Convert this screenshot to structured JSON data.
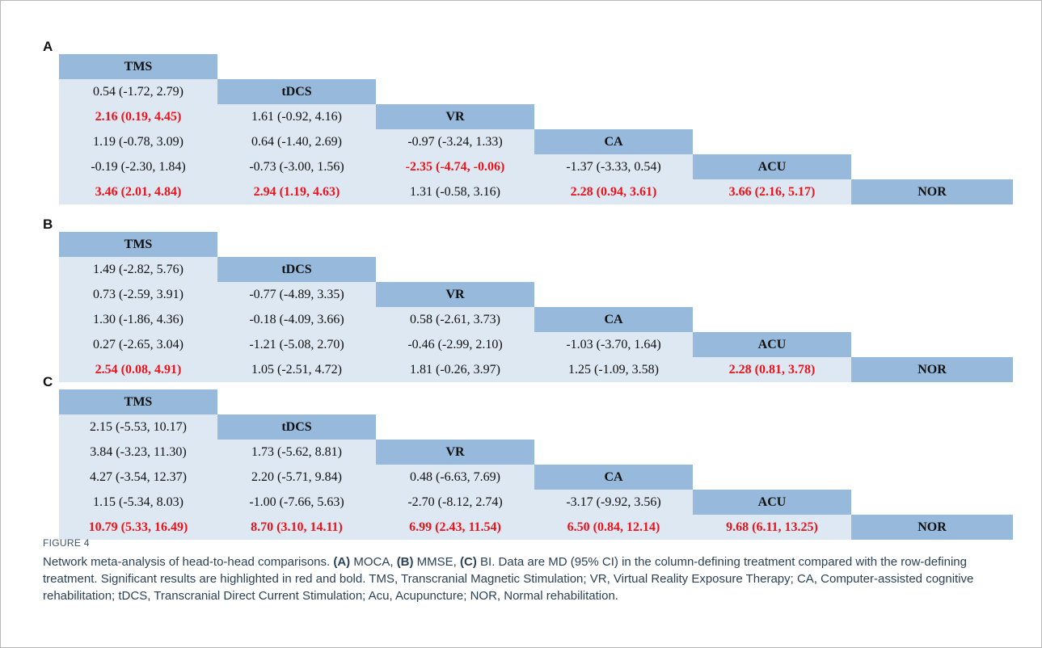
{
  "panels": [
    {
      "label": "A",
      "headers": [
        "TMS",
        "tDCS",
        "VR",
        "CA",
        "ACU",
        "NOR"
      ],
      "rows": [
        [
          {
            "t": "0.54 (-1.72, 2.79)",
            "s": false
          }
        ],
        [
          {
            "t": "2.16 (0.19, 4.45)",
            "s": true
          },
          {
            "t": "1.61 (-0.92, 4.16)",
            "s": false
          }
        ],
        [
          {
            "t": "1.19 (-0.78, 3.09)",
            "s": false
          },
          {
            "t": "0.64 (-1.40, 2.69)",
            "s": false
          },
          {
            "t": "-0.97 (-3.24, 1.33)",
            "s": false
          }
        ],
        [
          {
            "t": "-0.19 (-2.30, 1.84)",
            "s": false
          },
          {
            "t": "-0.73 (-3.00, 1.56)",
            "s": false
          },
          {
            "t": "-2.35 (-4.74, -0.06)",
            "s": true
          },
          {
            "t": "-1.37 (-3.33, 0.54)",
            "s": false
          }
        ],
        [
          {
            "t": "3.46 (2.01, 4.84)",
            "s": true
          },
          {
            "t": "2.94 (1.19, 4.63)",
            "s": true
          },
          {
            "t": "1.31 (-0.58, 3.16)",
            "s": false
          },
          {
            "t": "2.28 (0.94, 3.61)",
            "s": true
          },
          {
            "t": "3.66 (2.16, 5.17)",
            "s": true
          }
        ]
      ]
    },
    {
      "label": "B",
      "headers": [
        "TMS",
        "tDCS",
        "VR",
        "CA",
        "ACU",
        "NOR"
      ],
      "rows": [
        [
          {
            "t": "1.49 (-2.82, 5.76)",
            "s": false
          }
        ],
        [
          {
            "t": "0.73 (-2.59, 3.91)",
            "s": false
          },
          {
            "t": "-0.77 (-4.89, 3.35)",
            "s": false
          }
        ],
        [
          {
            "t": "1.30 (-1.86, 4.36)",
            "s": false
          },
          {
            "t": "-0.18 (-4.09, 3.66)",
            "s": false
          },
          {
            "t": "0.58 (-2.61, 3.73)",
            "s": false
          }
        ],
        [
          {
            "t": "0.27 (-2.65, 3.04)",
            "s": false
          },
          {
            "t": "-1.21 (-5.08, 2.70)",
            "s": false
          },
          {
            "t": "-0.46 (-2.99, 2.10)",
            "s": false
          },
          {
            "t": "-1.03 (-3.70, 1.64)",
            "s": false
          }
        ],
        [
          {
            "t": "2.54 (0.08, 4.91)",
            "s": true
          },
          {
            "t": "1.05 (-2.51, 4.72)",
            "s": false
          },
          {
            "t": "1.81 (-0.26, 3.97)",
            "s": false
          },
          {
            "t": "1.25 (-1.09, 3.58)",
            "s": false
          },
          {
            "t": "2.28 (0.81, 3.78)",
            "s": true
          }
        ]
      ]
    },
    {
      "label": "C",
      "headers": [
        "TMS",
        "tDCS",
        "VR",
        "CA",
        "ACU",
        "NOR"
      ],
      "rows": [
        [
          {
            "t": "2.15 (-5.53, 10.17)",
            "s": false
          }
        ],
        [
          {
            "t": "3.84 (-3.23, 11.30)",
            "s": false
          },
          {
            "t": "1.73 (-5.62, 8.81)",
            "s": false
          }
        ],
        [
          {
            "t": "4.27 (-3.54, 12.37)",
            "s": false
          },
          {
            "t": "2.20 (-5.71, 9.84)",
            "s": false
          },
          {
            "t": "0.48 (-6.63, 7.69)",
            "s": false
          }
        ],
        [
          {
            "t": "1.15 (-5.34, 8.03)",
            "s": false
          },
          {
            "t": "-1.00 (-7.66, 5.63)",
            "s": false
          },
          {
            "t": "-2.70 (-8.12, 2.74)",
            "s": false
          },
          {
            "t": "-3.17 (-9.92, 3.56)",
            "s": false
          }
        ],
        [
          {
            "t": "10.79 (5.33, 16.49)",
            "s": true
          },
          {
            "t": "8.70 (3.10, 14.11)",
            "s": true
          },
          {
            "t": "6.99 (2.43, 11.54)",
            "s": true
          },
          {
            "t": "6.50 (0.84, 12.14)",
            "s": true
          },
          {
            "t": "9.68 (6.11, 13.25)",
            "s": true
          }
        ]
      ]
    }
  ],
  "caption": {
    "figure_label": "FIGURE 4",
    "text": [
      {
        "t": "Network meta-analysis of head-to-head comparisons. ",
        "b": false
      },
      {
        "t": "(A)",
        "b": true
      },
      {
        "t": " MOCA, ",
        "b": false
      },
      {
        "t": "(B)",
        "b": true
      },
      {
        "t": " MMSE, ",
        "b": false
      },
      {
        "t": "(C)",
        "b": true
      },
      {
        "t": " BI. Data are MD (95% CI) in the column-defining treatment compared with the row-defining treatment. Significant results are highlighted in red and bold. TMS, Transcranial Magnetic Stimulation; VR, Virtual Reality Exposure Therapy; CA, Computer-assisted cognitive rehabilitation; tDCS, Transcranial Direct Current Stimulation; Acu, Acupuncture; NOR, Normal rehabilitation.",
        "b": false
      }
    ]
  }
}
